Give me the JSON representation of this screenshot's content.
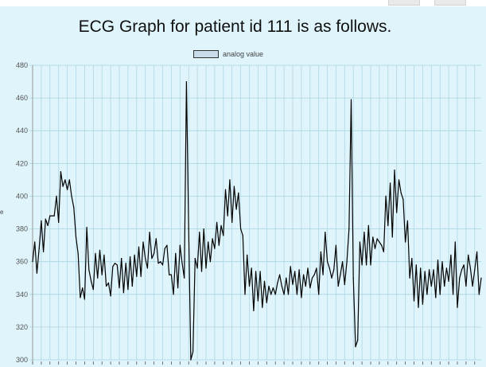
{
  "page": {
    "title": "ECG Graph for patient id 111 is as follows.",
    "left_edge_char": "e"
  },
  "chart_data": {
    "type": "line",
    "title": "ECG Graph for patient id 111 is as follows.",
    "xlabel": "",
    "ylabel": "",
    "ylim": [
      300,
      480
    ],
    "yticks": [
      300,
      320,
      340,
      360,
      380,
      400,
      420,
      440,
      460,
      480
    ],
    "grid": true,
    "legend_position": "top-center",
    "colors": {
      "line": "#000000",
      "grid": "#a9d3e2",
      "background": "#dff4fb",
      "legend_fill": "#c9dbe8"
    },
    "series": [
      {
        "name": "analog value",
        "values": [
          360,
          372,
          353,
          368,
          385,
          366,
          386,
          382,
          388,
          388,
          388,
          400,
          384,
          415,
          406,
          410,
          404,
          410,
          400,
          393,
          375,
          365,
          338,
          344,
          337,
          381,
          355,
          348,
          343,
          365,
          350,
          367,
          352,
          364,
          345,
          347,
          339,
          357,
          359,
          358,
          344,
          362,
          341,
          359,
          343,
          363,
          345,
          364,
          351,
          369,
          351,
          372,
          362,
          356,
          378,
          362,
          365,
          374,
          359,
          360,
          358,
          368,
          370,
          352,
          352,
          340,
          365,
          344,
          370,
          359,
          350,
          470,
          380,
          300,
          305,
          362,
          356,
          378,
          354,
          380,
          356,
          372,
          360,
          374,
          368,
          384,
          370,
          382,
          376,
          404,
          388,
          410,
          384,
          406,
          392,
          402,
          380,
          376,
          340,
          364,
          345,
          356,
          330,
          354,
          336,
          354,
          332,
          348,
          335,
          345,
          340,
          344,
          340,
          347,
          352,
          345,
          340,
          350,
          340,
          357,
          346,
          354,
          340,
          355,
          338,
          352,
          345,
          356,
          344,
          350,
          352,
          356,
          340,
          366,
          352,
          378,
          360,
          356,
          350,
          355,
          370,
          345,
          352,
          360,
          346,
          360,
          380,
          459,
          350,
          308,
          312,
          372,
          358,
          378,
          358,
          382,
          358,
          375,
          368,
          374,
          372,
          370,
          366,
          400,
          382,
          408,
          375,
          416,
          390,
          410,
          402,
          398,
          372,
          385,
          350,
          362,
          336,
          358,
          332,
          356,
          334,
          354,
          340,
          355,
          345,
          355,
          338,
          361,
          340,
          360,
          345,
          356,
          348,
          364,
          340,
          372,
          332,
          350,
          355,
          358,
          345,
          364,
          356,
          345,
          355,
          366,
          340,
          350
        ]
      }
    ]
  }
}
